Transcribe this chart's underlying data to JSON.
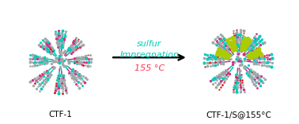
{
  "bg_color": "#ffffff",
  "left_label": "CTF-1",
  "right_label": "CTF-1/S@155°C",
  "arrow_text_line1": "sulfur",
  "arrow_text_line2": "Impregnation",
  "arrow_text_line3": "155 °C",
  "arrow_color1": "#00e5cc",
  "arrow_color2": "#00cc99",
  "text_color_cyan": "#00ccbb",
  "text_color_red": "#ff3355",
  "label_fontsize": 7.5,
  "arrow_text_fontsize": 8.0,
  "colors": {
    "gray": "#a0a8a8",
    "cyan": "#00ccbb",
    "magenta": "#cc3388",
    "red": "#dd2222",
    "yellow_green": "#aacc00",
    "dark_gray": "#505050"
  },
  "fig_width": 3.78,
  "fig_height": 1.58
}
